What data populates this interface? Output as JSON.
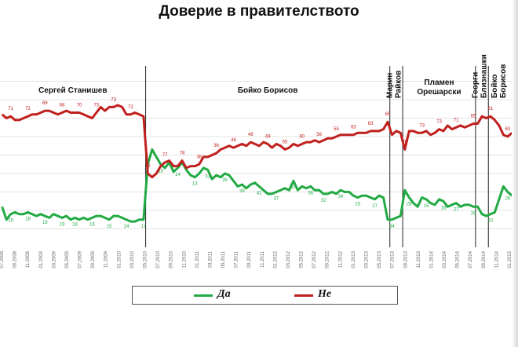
{
  "chart_data": {
    "type": "line",
    "title": "Доверие в правителството",
    "xlabel": "",
    "ylabel": "",
    "ylim": [
      0,
      100
    ],
    "grid": true,
    "legend_position": "bottom",
    "periods": [
      {
        "label": "Сергей Станишев",
        "start": 0,
        "end": 34
      },
      {
        "label": "Бойко Борисов",
        "start": 34,
        "end": 91
      },
      {
        "label": "Марин Райков",
        "start": 91,
        "end": 94
      },
      {
        "label": "Пламен Орешарски",
        "start": 94,
        "end": 111
      },
      {
        "label": "Георги Близнашки",
        "start": 111,
        "end": 114
      },
      {
        "label": "Бойко Борисов",
        "start": 114,
        "end": 120
      }
    ],
    "series": [
      {
        "name": "Да",
        "color": "#22aa44",
        "values": [
          22,
          15,
          18,
          19,
          18,
          18,
          19,
          18,
          17,
          18,
          17,
          16,
          18,
          17,
          16,
          17,
          15,
          16,
          15,
          16,
          15,
          16,
          17,
          17,
          16,
          15,
          17,
          17,
          16,
          15,
          14,
          14,
          15,
          15,
          45,
          53,
          49,
          45,
          43,
          46,
          41,
          43,
          46,
          42,
          39,
          38,
          40,
          43,
          42,
          37,
          39,
          38,
          40,
          39,
          36,
          33,
          34,
          32,
          34,
          35,
          33,
          31,
          29,
          29,
          30,
          31,
          32,
          31,
          36,
          31,
          33,
          32,
          33,
          31,
          31,
          29,
          29,
          30,
          29,
          31,
          30,
          30,
          28,
          27,
          28,
          28,
          27,
          26,
          28,
          27,
          15,
          15,
          16,
          17,
          31,
          27,
          24,
          22,
          27,
          26,
          24,
          23,
          26,
          25,
          22,
          23,
          24,
          22,
          23,
          23,
          22,
          22,
          18,
          17,
          18,
          19,
          26,
          33,
          30,
          28
        ]
      },
      {
        "name": "Не",
        "color": "#c0201e",
        "values": [
          72,
          70,
          71,
          69,
          69,
          70,
          71,
          72,
          72,
          73,
          74,
          74,
          73,
          72,
          73,
          74,
          73,
          73,
          73,
          72,
          71,
          70,
          73,
          76,
          74,
          76,
          76,
          77,
          76,
          72,
          72,
          73,
          72,
          71,
          40,
          38,
          40,
          44,
          46,
          47,
          44,
          44,
          47,
          43,
          44,
          44,
          45,
          49,
          49,
          50,
          51,
          53,
          54,
          55,
          54,
          55,
          56,
          55,
          57,
          56,
          55,
          57,
          56,
          54,
          56,
          55,
          53,
          54,
          56,
          55,
          56,
          57,
          57,
          58,
          57,
          58,
          59,
          59,
          60,
          61,
          61,
          61,
          61,
          62,
          62,
          62,
          63,
          63,
          63,
          64,
          68,
          61,
          63,
          62,
          53,
          63,
          63,
          62,
          62,
          63,
          61,
          62,
          64,
          63,
          66,
          64,
          65,
          66,
          65,
          66,
          67,
          67,
          71,
          70,
          71,
          69,
          66,
          61,
          60,
          62
        ]
      }
    ],
    "point_labels": {
      "Да": [
        "15",
        "18",
        "18",
        "19",
        "18",
        "16",
        "15",
        "14",
        "17",
        "15",
        "14",
        "13",
        "31",
        "39",
        "39",
        "41",
        "37",
        "37",
        "36",
        "32",
        "34",
        "25",
        "27",
        "34",
        "28",
        "15",
        "18",
        "27",
        "26",
        "32",
        "26"
      ],
      "Не": [
        "71",
        "72",
        "69",
        "68",
        "70",
        "73",
        "73",
        "72",
        "76",
        "77",
        "78",
        "38",
        "36",
        "46",
        "49",
        "49",
        "55",
        "60",
        "56",
        "55",
        "63",
        "63",
        "65",
        "70",
        "73",
        "73",
        "71",
        "65",
        "61",
        "63"
      ]
    },
    "x_tick_labels": [
      "07.2008",
      "09.2008",
      "11.2008",
      "01.2009",
      "03.2009",
      "05.2009",
      "07.2009",
      "09.2009",
      "11.2009",
      "01.2010",
      "03.2010",
      "05.2010",
      "07.2010",
      "09.2010",
      "11.2010",
      "01.2011",
      "03.2011",
      "05.2011",
      "07.2011",
      "09.2011",
      "11.2011",
      "01.2012",
      "03.2012",
      "05.2012",
      "07.2012",
      "09.2012",
      "11.2012",
      "01.2013",
      "03.2013",
      "05.2013",
      "07.2013",
      "09.2013",
      "11.2013",
      "01.2014",
      "03.2014",
      "05.2014",
      "07.2014",
      "09.2014",
      "11.2014",
      "01.2015"
    ]
  },
  "legend": [
    {
      "label": "Да",
      "color": "#22aa44"
    },
    {
      "label": "Не",
      "color": "#c0201e"
    }
  ]
}
